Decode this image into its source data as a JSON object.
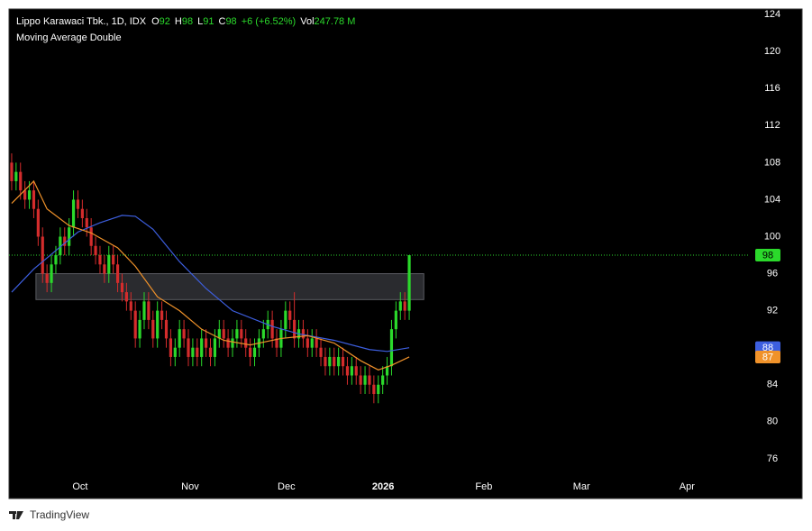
{
  "chart_data": {
    "type": "candlestick",
    "title": "Lippo Karawaci Tbk., 1D, IDX",
    "subtitle": "Moving Average Double",
    "legend": {
      "o_label": "O",
      "o": 92,
      "h_label": "H",
      "h": 98,
      "l_label": "L",
      "l": 91,
      "c_label": "C",
      "c": 98,
      "change": "+6 (+6.52%)",
      "vol_label": "Vol",
      "vol": "247.78 M"
    },
    "up_color": "#2bd92b",
    "down_color": "#d42c2c",
    "x": [
      0,
      1,
      2,
      3,
      4,
      5,
      6,
      7,
      8,
      9,
      10,
      11,
      12,
      13,
      14,
      15,
      16,
      17,
      18,
      19,
      20,
      21,
      22,
      23,
      24,
      25,
      26,
      27,
      28,
      29,
      30,
      31,
      32,
      33,
      34,
      35,
      36,
      37,
      38,
      39,
      40,
      41,
      42,
      43,
      44,
      45,
      46,
      47,
      48,
      49,
      50,
      51,
      52,
      53,
      54,
      55,
      56,
      57,
      58,
      59,
      60,
      61,
      62,
      63,
      64,
      65,
      66,
      67,
      68,
      69,
      70,
      71,
      72,
      73,
      74,
      75,
      76,
      77,
      78,
      79,
      80,
      81,
      82,
      83,
      84,
      85,
      86,
      87,
      88,
      89,
      90
    ],
    "open": [
      108,
      106,
      107,
      105,
      104,
      105,
      103,
      100,
      96,
      95,
      97,
      98,
      100,
      99,
      101,
      104,
      103,
      102,
      101,
      99,
      98,
      97,
      96,
      98,
      97,
      95,
      94,
      93,
      92,
      89,
      91,
      93,
      91,
      89,
      92,
      91,
      89,
      87,
      88,
      90,
      89,
      87,
      88,
      87,
      89,
      88,
      87,
      89,
      90,
      89,
      88,
      89,
      90,
      89,
      88,
      87,
      88,
      89,
      90,
      91,
      89,
      88,
      90,
      92,
      91,
      89,
      90,
      89,
      88,
      89,
      88,
      87,
      86,
      87,
      86,
      87,
      86,
      85,
      86,
      85,
      84,
      85,
      84,
      83,
      84,
      85,
      86,
      90,
      92,
      93,
      92
    ],
    "high": [
      109,
      108,
      108,
      106,
      106,
      106,
      104,
      101,
      97,
      98,
      99,
      101,
      101,
      102,
      105,
      105,
      104,
      103,
      102,
      100,
      99,
      98,
      99,
      99,
      98,
      96,
      95,
      94,
      93,
      92,
      94,
      94,
      92,
      93,
      93,
      92,
      90,
      89,
      91,
      91,
      90,
      89,
      89,
      90,
      90,
      89,
      90,
      91,
      91,
      90,
      90,
      91,
      91,
      90,
      89,
      89,
      90,
      91,
      92,
      92,
      90,
      91,
      93,
      93,
      94,
      91,
      91,
      90,
      90,
      90,
      89,
      88,
      88,
      88,
      88,
      88,
      87,
      87,
      87,
      86,
      86,
      86,
      85,
      85,
      86,
      87,
      91,
      93,
      94,
      94,
      98
    ],
    "low": [
      105,
      105,
      104,
      103,
      103,
      102,
      99,
      95,
      94,
      94,
      96,
      97,
      98,
      98,
      100,
      102,
      101,
      100,
      98,
      97,
      96,
      95,
      95,
      96,
      94,
      93,
      92,
      91,
      88,
      88,
      90,
      90,
      88,
      88,
      90,
      88,
      86,
      86,
      87,
      88,
      86,
      86,
      86,
      86,
      87,
      86,
      86,
      88,
      88,
      87,
      87,
      88,
      88,
      87,
      86,
      86,
      87,
      88,
      89,
      88,
      87,
      87,
      89,
      90,
      88,
      88,
      88,
      87,
      87,
      87,
      86,
      85,
      85,
      85,
      85,
      85,
      84,
      84,
      84,
      83,
      83,
      83,
      82,
      82,
      83,
      84,
      85,
      89,
      91,
      91,
      91
    ],
    "close": [
      106,
      107,
      105,
      104,
      105,
      103,
      100,
      96,
      95,
      97,
      98,
      100,
      99,
      101,
      104,
      103,
      102,
      101,
      99,
      98,
      97,
      96,
      98,
      97,
      95,
      94,
      93,
      92,
      89,
      91,
      93,
      91,
      89,
      92,
      91,
      89,
      87,
      88,
      90,
      89,
      87,
      88,
      87,
      89,
      88,
      87,
      89,
      90,
      89,
      88,
      89,
      90,
      89,
      88,
      87,
      88,
      89,
      90,
      91,
      89,
      88,
      90,
      92,
      91,
      89,
      90,
      89,
      88,
      89,
      88,
      87,
      86,
      87,
      86,
      87,
      86,
      85,
      86,
      85,
      84,
      85,
      84,
      83,
      84,
      85,
      86,
      90,
      92,
      93,
      92,
      98
    ],
    "series": [
      {
        "color": "#3d5fe0",
        "x": [
          0,
          5,
          10,
          15,
          20,
          25,
          28,
          32,
          38,
          44,
          50,
          59,
          65,
          73,
          81,
          85,
          90
        ],
        "values": [
          94,
          96.5,
          98.5,
          100.5,
          101.5,
          102.3,
          102.2,
          100.8,
          97.3,
          94.4,
          92,
          90.3,
          89.5,
          88.8,
          87.8,
          87.6,
          88
        ]
      },
      {
        "color": "#f0922a",
        "x": [
          0,
          5,
          8,
          13,
          18,
          24,
          28,
          33,
          38,
          43,
          48,
          54,
          61,
          67,
          73,
          79,
          83,
          86,
          90
        ],
        "values": [
          103.6,
          106,
          103,
          101.2,
          100.4,
          98.8,
          96.8,
          93.5,
          92,
          90,
          88.8,
          88.3,
          89,
          89.3,
          88.5,
          86.6,
          85.6,
          86.1,
          87
        ]
      }
    ],
    "zone": {
      "x": [
        5.5,
        93.3
      ],
      "y": [
        93.2,
        96
      ]
    },
    "xlim": [
      -0.6,
      166.7
    ],
    "xticks": [
      {
        "value": 15.5,
        "label": "Oct"
      },
      {
        "value": 40.4,
        "label": "Nov"
      },
      {
        "value": 62.2,
        "label": "Dec"
      },
      {
        "value": 84.1,
        "label": "2026"
      },
      {
        "value": 106.9,
        "label": "Feb"
      },
      {
        "value": 129,
        "label": "Mar"
      },
      {
        "value": 152.9,
        "label": "Apr"
      }
    ],
    "ylim": [
      71.7,
      124.6
    ],
    "yticks": [
      76,
      80,
      84,
      88,
      92,
      96,
      100,
      104,
      108,
      112,
      116,
      120,
      124
    ],
    "grid": false
  },
  "footer": {
    "brand": "TradingView"
  }
}
